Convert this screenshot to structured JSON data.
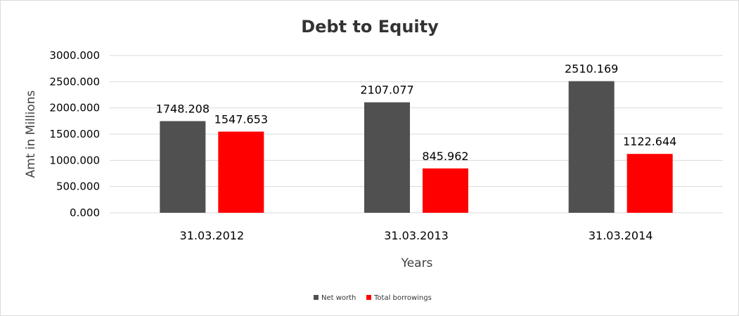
{
  "chart_data": {
    "type": "bar",
    "title": "Debt to Equity",
    "xlabel": "Years",
    "ylabel": "Amt in Millions",
    "categories": [
      "31.03.2012",
      "31.03.2013",
      "31.03.2014"
    ],
    "series": [
      {
        "name": "Net worth",
        "color": "#505050",
        "values": [
          1748.208,
          2107.077,
          2510.169
        ],
        "labels": [
          "1748.208",
          "2107.077",
          "2510.169"
        ]
      },
      {
        "name": "Total borrowings",
        "color": "#ff0000",
        "values": [
          1547.653,
          845.962,
          1122.644
        ],
        "labels": [
          "1547.653",
          "845.962",
          "1122.644"
        ]
      }
    ],
    "ylim": [
      0,
      3000
    ],
    "yticks": [
      0,
      500,
      1000,
      1500,
      2000,
      2500,
      3000
    ],
    "ytick_labels": [
      "0.000",
      "500.000",
      "1000.000",
      "1500.000",
      "2000.000",
      "2500.000",
      "3000.000"
    ],
    "grid": true,
    "legend_position": "bottom"
  }
}
